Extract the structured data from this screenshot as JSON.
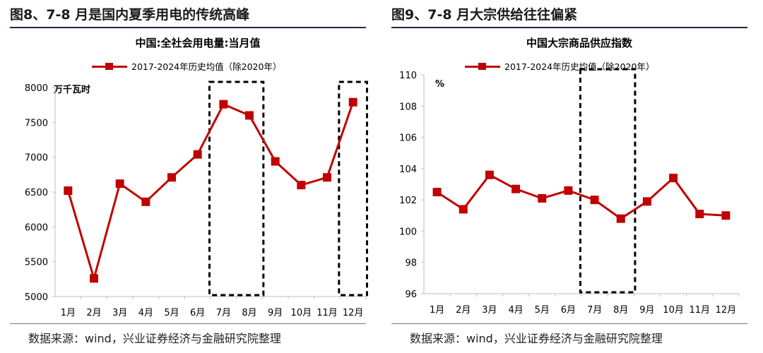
{
  "left": {
    "figure_title": "图8、7-8 月是国内夏季用电的传统高峰",
    "source": "数据来源：wind，兴业证券经济与金融研究院整理",
    "unit": "万千瓦时",
    "series_color": "#c00000"
  },
  "right": {
    "figure_title": "图9、7-8 月大宗供给往往偏紧",
    "source": "数据来源：wind，兴业证券经济与金融研究院整理",
    "unit": "%",
    "series_color": "#c00000"
  },
  "chart_data": [
    {
      "type": "line",
      "title": "中国:全社会用电量:当月值",
      "categories": [
        "1月",
        "2月",
        "3月",
        "4月",
        "5月",
        "6月",
        "7月",
        "8月",
        "9月",
        "10月",
        "11月",
        "12月"
      ],
      "series": [
        {
          "name": "2017-2024年历史均值（除2020年）",
          "values": [
            6520,
            5260,
            6620,
            6360,
            6710,
            7040,
            7760,
            7600,
            6940,
            6600,
            6710,
            7790
          ]
        }
      ],
      "ylabel": "万千瓦时",
      "ylim": [
        5000,
        8000
      ],
      "yticks": [
        5000,
        5500,
        6000,
        6500,
        7000,
        7500,
        8000
      ],
      "highlighted_ranges": [
        [
          "7月",
          "8月"
        ],
        [
          "12月",
          "12月"
        ]
      ],
      "grid": false,
      "legend_position": "top-center"
    },
    {
      "type": "line",
      "title": "中国大宗商品供应指数",
      "categories": [
        "1月",
        "2月",
        "3月",
        "4月",
        "5月",
        "6月",
        "7月",
        "8月",
        "9月",
        "10月",
        "11月",
        "12月"
      ],
      "series": [
        {
          "name": "2017-2024年历史均值（除2020年）",
          "values": [
            102.5,
            101.4,
            103.6,
            102.7,
            102.1,
            102.6,
            102.0,
            100.8,
            101.9,
            103.4,
            101.1,
            101.0
          ]
        }
      ],
      "ylabel": "%",
      "ylim": [
        96,
        110
      ],
      "yticks": [
        96,
        98,
        100,
        102,
        104,
        106,
        108,
        110
      ],
      "highlighted_ranges": [
        [
          "7月",
          "8月"
        ]
      ],
      "grid": false,
      "legend_position": "top-center"
    }
  ]
}
